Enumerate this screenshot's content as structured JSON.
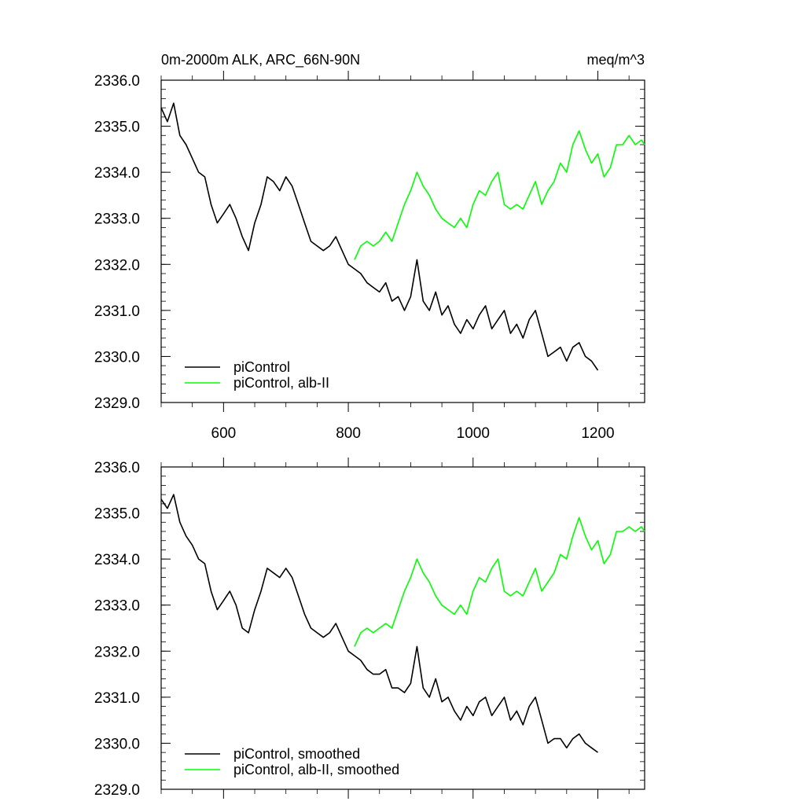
{
  "page": {
    "title_left": "0m-2000m ALK, ARC_66N-90N",
    "title_right": "meq/m^3"
  },
  "colors": {
    "piControl": "#000000",
    "alb_II": "#00ff00"
  },
  "chart_data": [
    {
      "type": "line",
      "title": "0m-2000m ALK, ARC_66N-90N",
      "units": "meq/m^3",
      "xlim": [
        500,
        1275
      ],
      "ylim": [
        2329.0,
        2336.0
      ],
      "x_ticks": [
        600,
        800,
        1000,
        1200
      ],
      "x_tick_labels": [
        "600",
        "800",
        "1000",
        "1200"
      ],
      "y_ticks": [
        2329.0,
        2330.0,
        2331.0,
        2332.0,
        2333.0,
        2334.0,
        2335.0,
        2336.0
      ],
      "y_tick_labels": [
        "2329.0",
        "2330.0",
        "2331.0",
        "2332.0",
        "2333.0",
        "2334.0",
        "2335.0",
        "2336.0"
      ],
      "legend_position": "bottom-left",
      "grid": false,
      "series": [
        {
          "name": "piControl",
          "color": "#000000",
          "points": [
            [
              500,
              2335.4
            ],
            [
              510,
              2335.1
            ],
            [
              520,
              2335.5
            ],
            [
              530,
              2334.8
            ],
            [
              540,
              2334.6
            ],
            [
              550,
              2334.3
            ],
            [
              560,
              2334.0
            ],
            [
              570,
              2333.9
            ],
            [
              580,
              2333.3
            ],
            [
              590,
              2332.9
            ],
            [
              600,
              2333.1
            ],
            [
              610,
              2333.3
            ],
            [
              620,
              2333.0
            ],
            [
              630,
              2332.6
            ],
            [
              640,
              2332.3
            ],
            [
              650,
              2332.9
            ],
            [
              660,
              2333.3
            ],
            [
              670,
              2333.9
            ],
            [
              680,
              2333.8
            ],
            [
              690,
              2333.6
            ],
            [
              700,
              2333.9
            ],
            [
              710,
              2333.7
            ],
            [
              720,
              2333.3
            ],
            [
              730,
              2332.9
            ],
            [
              740,
              2332.5
            ],
            [
              750,
              2332.4
            ],
            [
              760,
              2332.3
            ],
            [
              770,
              2332.4
            ],
            [
              780,
              2332.6
            ],
            [
              790,
              2332.3
            ],
            [
              800,
              2332.0
            ],
            [
              810,
              2331.9
            ],
            [
              820,
              2331.8
            ],
            [
              830,
              2331.6
            ],
            [
              840,
              2331.5
            ],
            [
              850,
              2331.4
            ],
            [
              860,
              2331.6
            ],
            [
              870,
              2331.2
            ],
            [
              880,
              2331.3
            ],
            [
              890,
              2331.0
            ],
            [
              900,
              2331.3
            ],
            [
              910,
              2332.1
            ],
            [
              920,
              2331.2
            ],
            [
              930,
              2331.0
            ],
            [
              940,
              2331.4
            ],
            [
              950,
              2330.9
            ],
            [
              960,
              2331.1
            ],
            [
              970,
              2330.7
            ],
            [
              980,
              2330.5
            ],
            [
              990,
              2330.8
            ],
            [
              1000,
              2330.6
            ],
            [
              1010,
              2330.9
            ],
            [
              1020,
              2331.1
            ],
            [
              1030,
              2330.6
            ],
            [
              1040,
              2330.8
            ],
            [
              1050,
              2331.0
            ],
            [
              1060,
              2330.5
            ],
            [
              1070,
              2330.7
            ],
            [
              1080,
              2330.4
            ],
            [
              1090,
              2330.8
            ],
            [
              1100,
              2331.0
            ],
            [
              1110,
              2330.5
            ],
            [
              1120,
              2330.0
            ],
            [
              1130,
              2330.1
            ],
            [
              1140,
              2330.2
            ],
            [
              1150,
              2329.9
            ],
            [
              1160,
              2330.2
            ],
            [
              1170,
              2330.3
            ],
            [
              1180,
              2330.0
            ],
            [
              1190,
              2329.9
            ],
            [
              1200,
              2329.7
            ]
          ]
        },
        {
          "name": "piControl, alb-II",
          "color": "#00ff00",
          "points": [
            [
              810,
              2332.1
            ],
            [
              820,
              2332.4
            ],
            [
              830,
              2332.5
            ],
            [
              840,
              2332.4
            ],
            [
              850,
              2332.5
            ],
            [
              860,
              2332.7
            ],
            [
              870,
              2332.5
            ],
            [
              880,
              2332.9
            ],
            [
              890,
              2333.3
            ],
            [
              900,
              2333.6
            ],
            [
              910,
              2334.0
            ],
            [
              920,
              2333.7
            ],
            [
              930,
              2333.5
            ],
            [
              940,
              2333.2
            ],
            [
              950,
              2333.0
            ],
            [
              960,
              2332.9
            ],
            [
              970,
              2332.8
            ],
            [
              980,
              2333.0
            ],
            [
              990,
              2332.8
            ],
            [
              1000,
              2333.3
            ],
            [
              1010,
              2333.6
            ],
            [
              1020,
              2333.5
            ],
            [
              1030,
              2333.8
            ],
            [
              1040,
              2334.0
            ],
            [
              1050,
              2333.3
            ],
            [
              1060,
              2333.2
            ],
            [
              1070,
              2333.3
            ],
            [
              1080,
              2333.2
            ],
            [
              1090,
              2333.5
            ],
            [
              1100,
              2333.8
            ],
            [
              1110,
              2333.3
            ],
            [
              1120,
              2333.6
            ],
            [
              1130,
              2333.8
            ],
            [
              1140,
              2334.2
            ],
            [
              1150,
              2334.0
            ],
            [
              1160,
              2334.6
            ],
            [
              1170,
              2334.9
            ],
            [
              1180,
              2334.5
            ],
            [
              1190,
              2334.2
            ],
            [
              1200,
              2334.4
            ],
            [
              1210,
              2333.9
            ],
            [
              1220,
              2334.1
            ],
            [
              1230,
              2334.6
            ],
            [
              1240,
              2334.6
            ],
            [
              1250,
              2334.8
            ],
            [
              1260,
              2334.6
            ],
            [
              1270,
              2334.7
            ],
            [
              1275,
              2334.6
            ]
          ]
        }
      ],
      "legend": [
        "piControl",
        "piControl, alb-II"
      ]
    },
    {
      "type": "line",
      "xlim": [
        500,
        1275
      ],
      "ylim": [
        2329.0,
        2336.0
      ],
      "x_ticks": [
        600,
        800,
        1000,
        1200
      ],
      "y_ticks": [
        2329.0,
        2330.0,
        2331.0,
        2332.0,
        2333.0,
        2334.0,
        2335.0,
        2336.0
      ],
      "y_tick_labels": [
        "2329.0",
        "2330.0",
        "2331.0",
        "2332.0",
        "2333.0",
        "2334.0",
        "2335.0",
        "2336.0"
      ],
      "legend_position": "bottom-left",
      "grid": false,
      "series": [
        {
          "name": "piControl, smoothed",
          "color": "#000000",
          "points": [
            [
              500,
              2335.3
            ],
            [
              510,
              2335.1
            ],
            [
              520,
              2335.4
            ],
            [
              530,
              2334.8
            ],
            [
              540,
              2334.5
            ],
            [
              550,
              2334.3
            ],
            [
              560,
              2334.0
            ],
            [
              570,
              2333.9
            ],
            [
              580,
              2333.3
            ],
            [
              590,
              2332.9
            ],
            [
              600,
              2333.1
            ],
            [
              610,
              2333.3
            ],
            [
              620,
              2333.0
            ],
            [
              630,
              2332.5
            ],
            [
              640,
              2332.4
            ],
            [
              650,
              2332.9
            ],
            [
              660,
              2333.3
            ],
            [
              670,
              2333.8
            ],
            [
              680,
              2333.7
            ],
            [
              690,
              2333.6
            ],
            [
              700,
              2333.8
            ],
            [
              710,
              2333.6
            ],
            [
              720,
              2333.2
            ],
            [
              730,
              2332.8
            ],
            [
              740,
              2332.5
            ],
            [
              750,
              2332.4
            ],
            [
              760,
              2332.3
            ],
            [
              770,
              2332.4
            ],
            [
              780,
              2332.6
            ],
            [
              790,
              2332.3
            ],
            [
              800,
              2332.0
            ],
            [
              810,
              2331.9
            ],
            [
              820,
              2331.8
            ],
            [
              830,
              2331.6
            ],
            [
              840,
              2331.5
            ],
            [
              850,
              2331.5
            ],
            [
              860,
              2331.6
            ],
            [
              870,
              2331.2
            ],
            [
              880,
              2331.2
            ],
            [
              890,
              2331.1
            ],
            [
              900,
              2331.3
            ],
            [
              910,
              2332.1
            ],
            [
              920,
              2331.2
            ],
            [
              930,
              2331.0
            ],
            [
              940,
              2331.4
            ],
            [
              950,
              2330.9
            ],
            [
              960,
              2331.0
            ],
            [
              970,
              2330.7
            ],
            [
              980,
              2330.5
            ],
            [
              990,
              2330.8
            ],
            [
              1000,
              2330.6
            ],
            [
              1010,
              2330.9
            ],
            [
              1020,
              2331.0
            ],
            [
              1030,
              2330.6
            ],
            [
              1040,
              2330.8
            ],
            [
              1050,
              2331.0
            ],
            [
              1060,
              2330.5
            ],
            [
              1070,
              2330.7
            ],
            [
              1080,
              2330.4
            ],
            [
              1090,
              2330.8
            ],
            [
              1100,
              2331.0
            ],
            [
              1110,
              2330.5
            ],
            [
              1120,
              2330.0
            ],
            [
              1130,
              2330.1
            ],
            [
              1140,
              2330.1
            ],
            [
              1150,
              2329.9
            ],
            [
              1160,
              2330.1
            ],
            [
              1170,
              2330.2
            ],
            [
              1180,
              2330.0
            ],
            [
              1190,
              2329.9
            ],
            [
              1200,
              2329.8
            ]
          ]
        },
        {
          "name": "piControl, alb-II, smoothed",
          "color": "#00ff00",
          "points": [
            [
              810,
              2332.1
            ],
            [
              820,
              2332.4
            ],
            [
              830,
              2332.5
            ],
            [
              840,
              2332.4
            ],
            [
              850,
              2332.5
            ],
            [
              860,
              2332.6
            ],
            [
              870,
              2332.5
            ],
            [
              880,
              2332.9
            ],
            [
              890,
              2333.3
            ],
            [
              900,
              2333.6
            ],
            [
              910,
              2334.0
            ],
            [
              920,
              2333.7
            ],
            [
              930,
              2333.5
            ],
            [
              940,
              2333.2
            ],
            [
              950,
              2333.0
            ],
            [
              960,
              2332.9
            ],
            [
              970,
              2332.8
            ],
            [
              980,
              2333.0
            ],
            [
              990,
              2332.8
            ],
            [
              1000,
              2333.3
            ],
            [
              1010,
              2333.6
            ],
            [
              1020,
              2333.5
            ],
            [
              1030,
              2333.8
            ],
            [
              1040,
              2334.0
            ],
            [
              1050,
              2333.3
            ],
            [
              1060,
              2333.2
            ],
            [
              1070,
              2333.3
            ],
            [
              1080,
              2333.2
            ],
            [
              1090,
              2333.5
            ],
            [
              1100,
              2333.8
            ],
            [
              1110,
              2333.3
            ],
            [
              1120,
              2333.5
            ],
            [
              1130,
              2333.7
            ],
            [
              1140,
              2334.1
            ],
            [
              1150,
              2334.0
            ],
            [
              1160,
              2334.5
            ],
            [
              1170,
              2334.9
            ],
            [
              1180,
              2334.5
            ],
            [
              1190,
              2334.2
            ],
            [
              1200,
              2334.4
            ],
            [
              1210,
              2333.9
            ],
            [
              1220,
              2334.1
            ],
            [
              1230,
              2334.6
            ],
            [
              1240,
              2334.6
            ],
            [
              1250,
              2334.7
            ],
            [
              1260,
              2334.6
            ],
            [
              1270,
              2334.7
            ],
            [
              1275,
              2334.6
            ]
          ]
        }
      ],
      "legend": [
        "piControl, smoothed",
        "piControl, alb-II, smoothed"
      ]
    }
  ]
}
